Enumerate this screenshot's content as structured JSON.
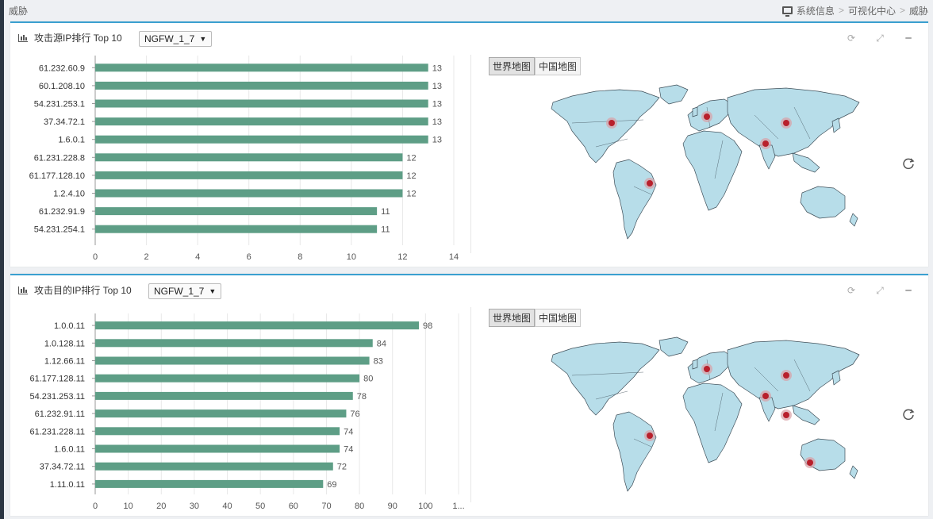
{
  "topbar": {
    "page_label": "威胁",
    "breadcrumb": [
      "系统信息",
      "可视化中心",
      "威胁"
    ]
  },
  "panels": [
    {
      "title": "攻击源IP排行 Top 10",
      "device_select": "NGFW_1_7",
      "map_tabs": [
        "世界地图",
        "中国地图"
      ],
      "bar_color": "#5e9e86",
      "chart_data": {
        "type": "bar",
        "orientation": "horizontal",
        "categories": [
          "61.232.60.9",
          "60.1.208.10",
          "54.231.253.1",
          "37.34.72.1",
          "1.6.0.1",
          "61.231.228.8",
          "61.177.128.10",
          "1.2.4.10",
          "61.232.91.9",
          "54.231.254.1"
        ],
        "values": [
          13,
          13,
          13,
          13,
          13,
          12,
          12,
          12,
          11,
          11
        ],
        "xlim": [
          0,
          14
        ],
        "x_ticks": [
          "0",
          "2",
          "4",
          "6",
          "8",
          "10",
          "12",
          "14"
        ],
        "grid": true
      },
      "map_markers": [
        "usa",
        "europe",
        "china",
        "india",
        "brazil"
      ]
    },
    {
      "title": "攻击目的IP排行 Top 10",
      "device_select": "NGFW_1_7",
      "map_tabs": [
        "世界地图",
        "中国地图"
      ],
      "bar_color": "#5e9e86",
      "chart_data": {
        "type": "bar",
        "orientation": "horizontal",
        "categories": [
          "1.0.0.11",
          "1.0.128.11",
          "1.12.66.11",
          "61.177.128.11",
          "54.231.253.11",
          "61.232.91.11",
          "61.231.228.11",
          "1.6.0.11",
          "37.34.72.11",
          "1.11.0.11"
        ],
        "values": [
          98,
          84,
          83,
          80,
          78,
          76,
          74,
          74,
          72,
          69
        ],
        "xlim": [
          0,
          110
        ],
        "x_ticks": [
          "0",
          "10",
          "20",
          "30",
          "40",
          "50",
          "60",
          "70",
          "80",
          "90",
          "100",
          "1..."
        ],
        "grid": true
      },
      "map_markers": [
        "europe",
        "china",
        "india",
        "southeast-asia",
        "brazil",
        "australia"
      ]
    }
  ]
}
